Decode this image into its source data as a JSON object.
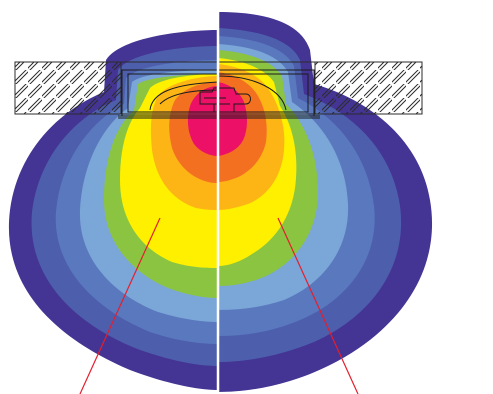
{
  "diagram": {
    "colors": {
      "background": "#ffffff",
      "band_outer_purple": "#443493",
      "band_dark_blue": "#4d5ead",
      "band_mid_blue": "#5a78bd",
      "band_light_blue": "#7ba6d8",
      "band_green": "#8bc441",
      "band_yellow": "#fff000",
      "band_gold": "#fdb515",
      "band_orange": "#f37021",
      "band_core_magenta": "#ec1066",
      "hatch_line": "#2b2b2b",
      "divider": "#ffffff",
      "leader_line": "#e41f2d",
      "fixture_outline": "#1a1a1a"
    },
    "left_half": {
      "bands": [
        "band_outer_purple",
        "band_dark_blue",
        "band_mid_blue",
        "band_light_blue",
        "band_green",
        "band_yellow",
        "band_gold",
        "band_orange",
        "band_core_magenta"
      ]
    },
    "right_half": {
      "bands": [
        "band_outer_purple",
        "band_dark_blue",
        "band_mid_blue",
        "band_light_blue",
        "band_green",
        "band_yellow",
        "band_gold",
        "band_orange",
        "band_core_magenta"
      ]
    },
    "ceiling_strip": {
      "pattern": "diagonal-hatch"
    },
    "leader_lines": {
      "count": 2
    }
  }
}
